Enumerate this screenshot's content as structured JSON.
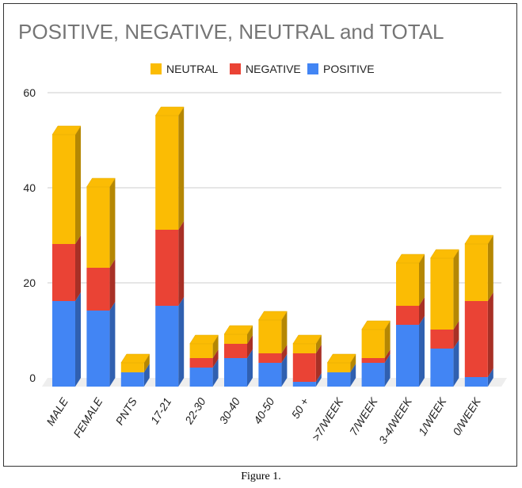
{
  "chart_data": {
    "type": "bar",
    "stacked": true,
    "style": "3d",
    "title": "POSITIVE, NEGATIVE, NEUTRAL and TOTAL",
    "xlabel": "",
    "ylabel": "",
    "ylim": [
      0,
      60
    ],
    "yticks": [
      "0",
      "20",
      "40",
      "60"
    ],
    "grid": true,
    "legend_position": "top",
    "legend": [
      "NEUTRAL",
      "NEGATIVE",
      "POSITIVE"
    ],
    "categories": [
      "MALE",
      "FEMALE",
      "PNTS",
      "17-21",
      "22-30",
      "30-40",
      "40-50",
      "50 +",
      ">7/WEEK",
      "7/WEEK",
      "3-4/WEEK",
      "1/WEEK",
      "0/WEEK"
    ],
    "series": [
      {
        "name": "POSITIVE",
        "color": "#4285f4",
        "values": [
          18,
          16,
          3,
          17,
          4,
          6,
          5,
          1,
          3,
          5,
          13,
          8,
          2
        ]
      },
      {
        "name": "NEGATIVE",
        "color": "#ea4335",
        "values": [
          12,
          9,
          0,
          16,
          2,
          3,
          2,
          6,
          0,
          1,
          4,
          4,
          16
        ]
      },
      {
        "name": "NEUTRAL",
        "color": "#fbbc04",
        "values": [
          23,
          17,
          2,
          24,
          3,
          2,
          7,
          2,
          2,
          6,
          9,
          15,
          12
        ]
      }
    ]
  },
  "caption": "Figure 1."
}
